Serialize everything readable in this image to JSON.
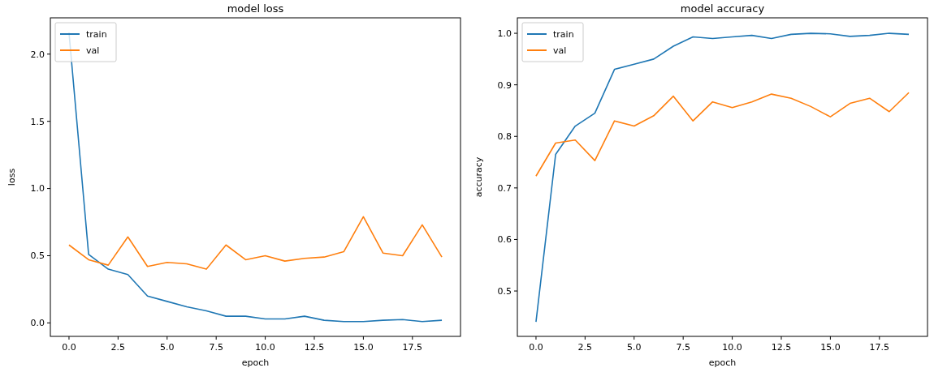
{
  "chart_data": [
    {
      "type": "line",
      "title": "model loss",
      "xlabel": "epoch",
      "ylabel": "loss",
      "x": [
        0,
        1,
        2,
        3,
        4,
        5,
        6,
        7,
        8,
        9,
        10,
        11,
        12,
        13,
        14,
        15,
        16,
        17,
        18,
        19
      ],
      "series": [
        {
          "name": "train",
          "color": "#1f77b4",
          "values": [
            2.16,
            0.51,
            0.4,
            0.36,
            0.2,
            0.16,
            0.12,
            0.09,
            0.05,
            0.05,
            0.03,
            0.03,
            0.05,
            0.02,
            0.01,
            0.01,
            0.02,
            0.025,
            0.01,
            0.02
          ]
        },
        {
          "name": "val",
          "color": "#ff7f0e",
          "values": [
            0.58,
            0.47,
            0.43,
            0.64,
            0.42,
            0.45,
            0.44,
            0.4,
            0.58,
            0.47,
            0.5,
            0.46,
            0.48,
            0.49,
            0.53,
            0.79,
            0.52,
            0.5,
            0.73,
            0.49
          ]
        }
      ],
      "xlim": [
        -0.95,
        19.95
      ],
      "xticks": [
        {
          "value": 0,
          "label": "0.0"
        },
        2.5,
        {
          "value": 5,
          "label": "5.0"
        },
        7.5,
        {
          "value": 10,
          "label": "10.0"
        },
        12.5,
        {
          "value": 15,
          "label": "15.0"
        },
        17.5
      ],
      "ylim": [
        -0.1,
        2.27
      ],
      "yticks": [
        {
          "value": 0,
          "label": "0.0"
        },
        0.5,
        {
          "value": 1,
          "label": "1.0"
        },
        1.5,
        {
          "value": 2,
          "label": "2.0"
        }
      ],
      "legend": "top left",
      "grid": false
    },
    {
      "type": "line",
      "title": "model accuracy",
      "xlabel": "epoch",
      "ylabel": "accuracy",
      "x": [
        0,
        1,
        2,
        3,
        4,
        5,
        6,
        7,
        8,
        9,
        10,
        11,
        12,
        13,
        14,
        15,
        16,
        17,
        18,
        19
      ],
      "series": [
        {
          "name": "train",
          "color": "#1f77b4",
          "values": [
            0.44,
            0.765,
            0.82,
            0.845,
            0.93,
            0.94,
            0.95,
            0.975,
            0.993,
            0.99,
            0.993,
            0.996,
            0.99,
            0.998,
            1.0,
            0.999,
            0.994,
            0.996,
            1.0,
            0.998
          ]
        },
        {
          "name": "val",
          "color": "#ff7f0e",
          "values": [
            0.723,
            0.787,
            0.793,
            0.753,
            0.83,
            0.82,
            0.84,
            0.878,
            0.83,
            0.867,
            0.856,
            0.867,
            0.882,
            0.874,
            0.858,
            0.838,
            0.864,
            0.874,
            0.848,
            0.885
          ]
        }
      ],
      "xlim": [
        -0.95,
        19.95
      ],
      "xticks": [
        {
          "value": 0,
          "label": "0.0"
        },
        2.5,
        {
          "value": 5,
          "label": "5.0"
        },
        7.5,
        {
          "value": 10,
          "label": "10.0"
        },
        12.5,
        {
          "value": 15,
          "label": "15.0"
        },
        17.5
      ],
      "ylim": [
        0.412,
        1.03
      ],
      "yticks": [
        0.5,
        0.6,
        0.7,
        0.8,
        0.9,
        {
          "value": 1,
          "label": "1.0"
        }
      ],
      "legend": "top left",
      "grid": false
    }
  ]
}
